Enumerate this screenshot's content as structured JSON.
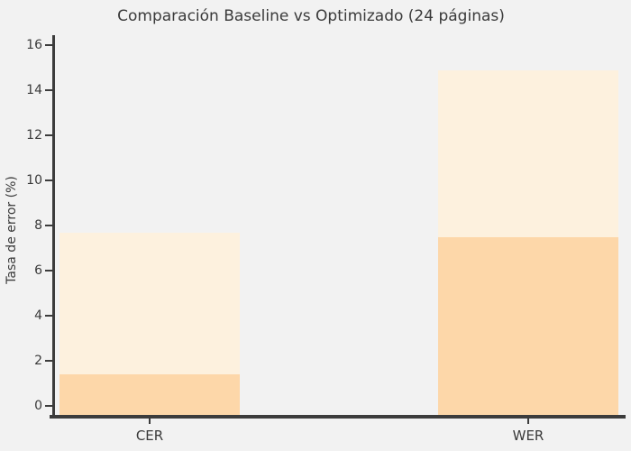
{
  "chart_data": {
    "type": "bar",
    "variant": "overlay",
    "title": "Comparación Baseline vs Optimizado (24 páginas)",
    "categories": [
      "CER",
      "WER"
    ],
    "series": [
      {
        "name": "Baseline",
        "values": [
          7.7,
          14.9
        ],
        "color": "#fdf1de"
      },
      {
        "name": "Optimizado",
        "values": [
          1.4,
          7.5
        ],
        "color": "#fdd7a9"
      }
    ],
    "xlabel": "",
    "ylabel": "Tasa de error (%)",
    "ylim": [
      0,
      16
    ],
    "yticks": [
      0,
      2,
      4,
      6,
      8,
      10,
      12,
      14,
      16
    ],
    "grid": false,
    "legend_position": "none",
    "background_color": "#f2f2f2",
    "axis_color": "#3c3c3c",
    "text_color": "#3a3a3a"
  }
}
